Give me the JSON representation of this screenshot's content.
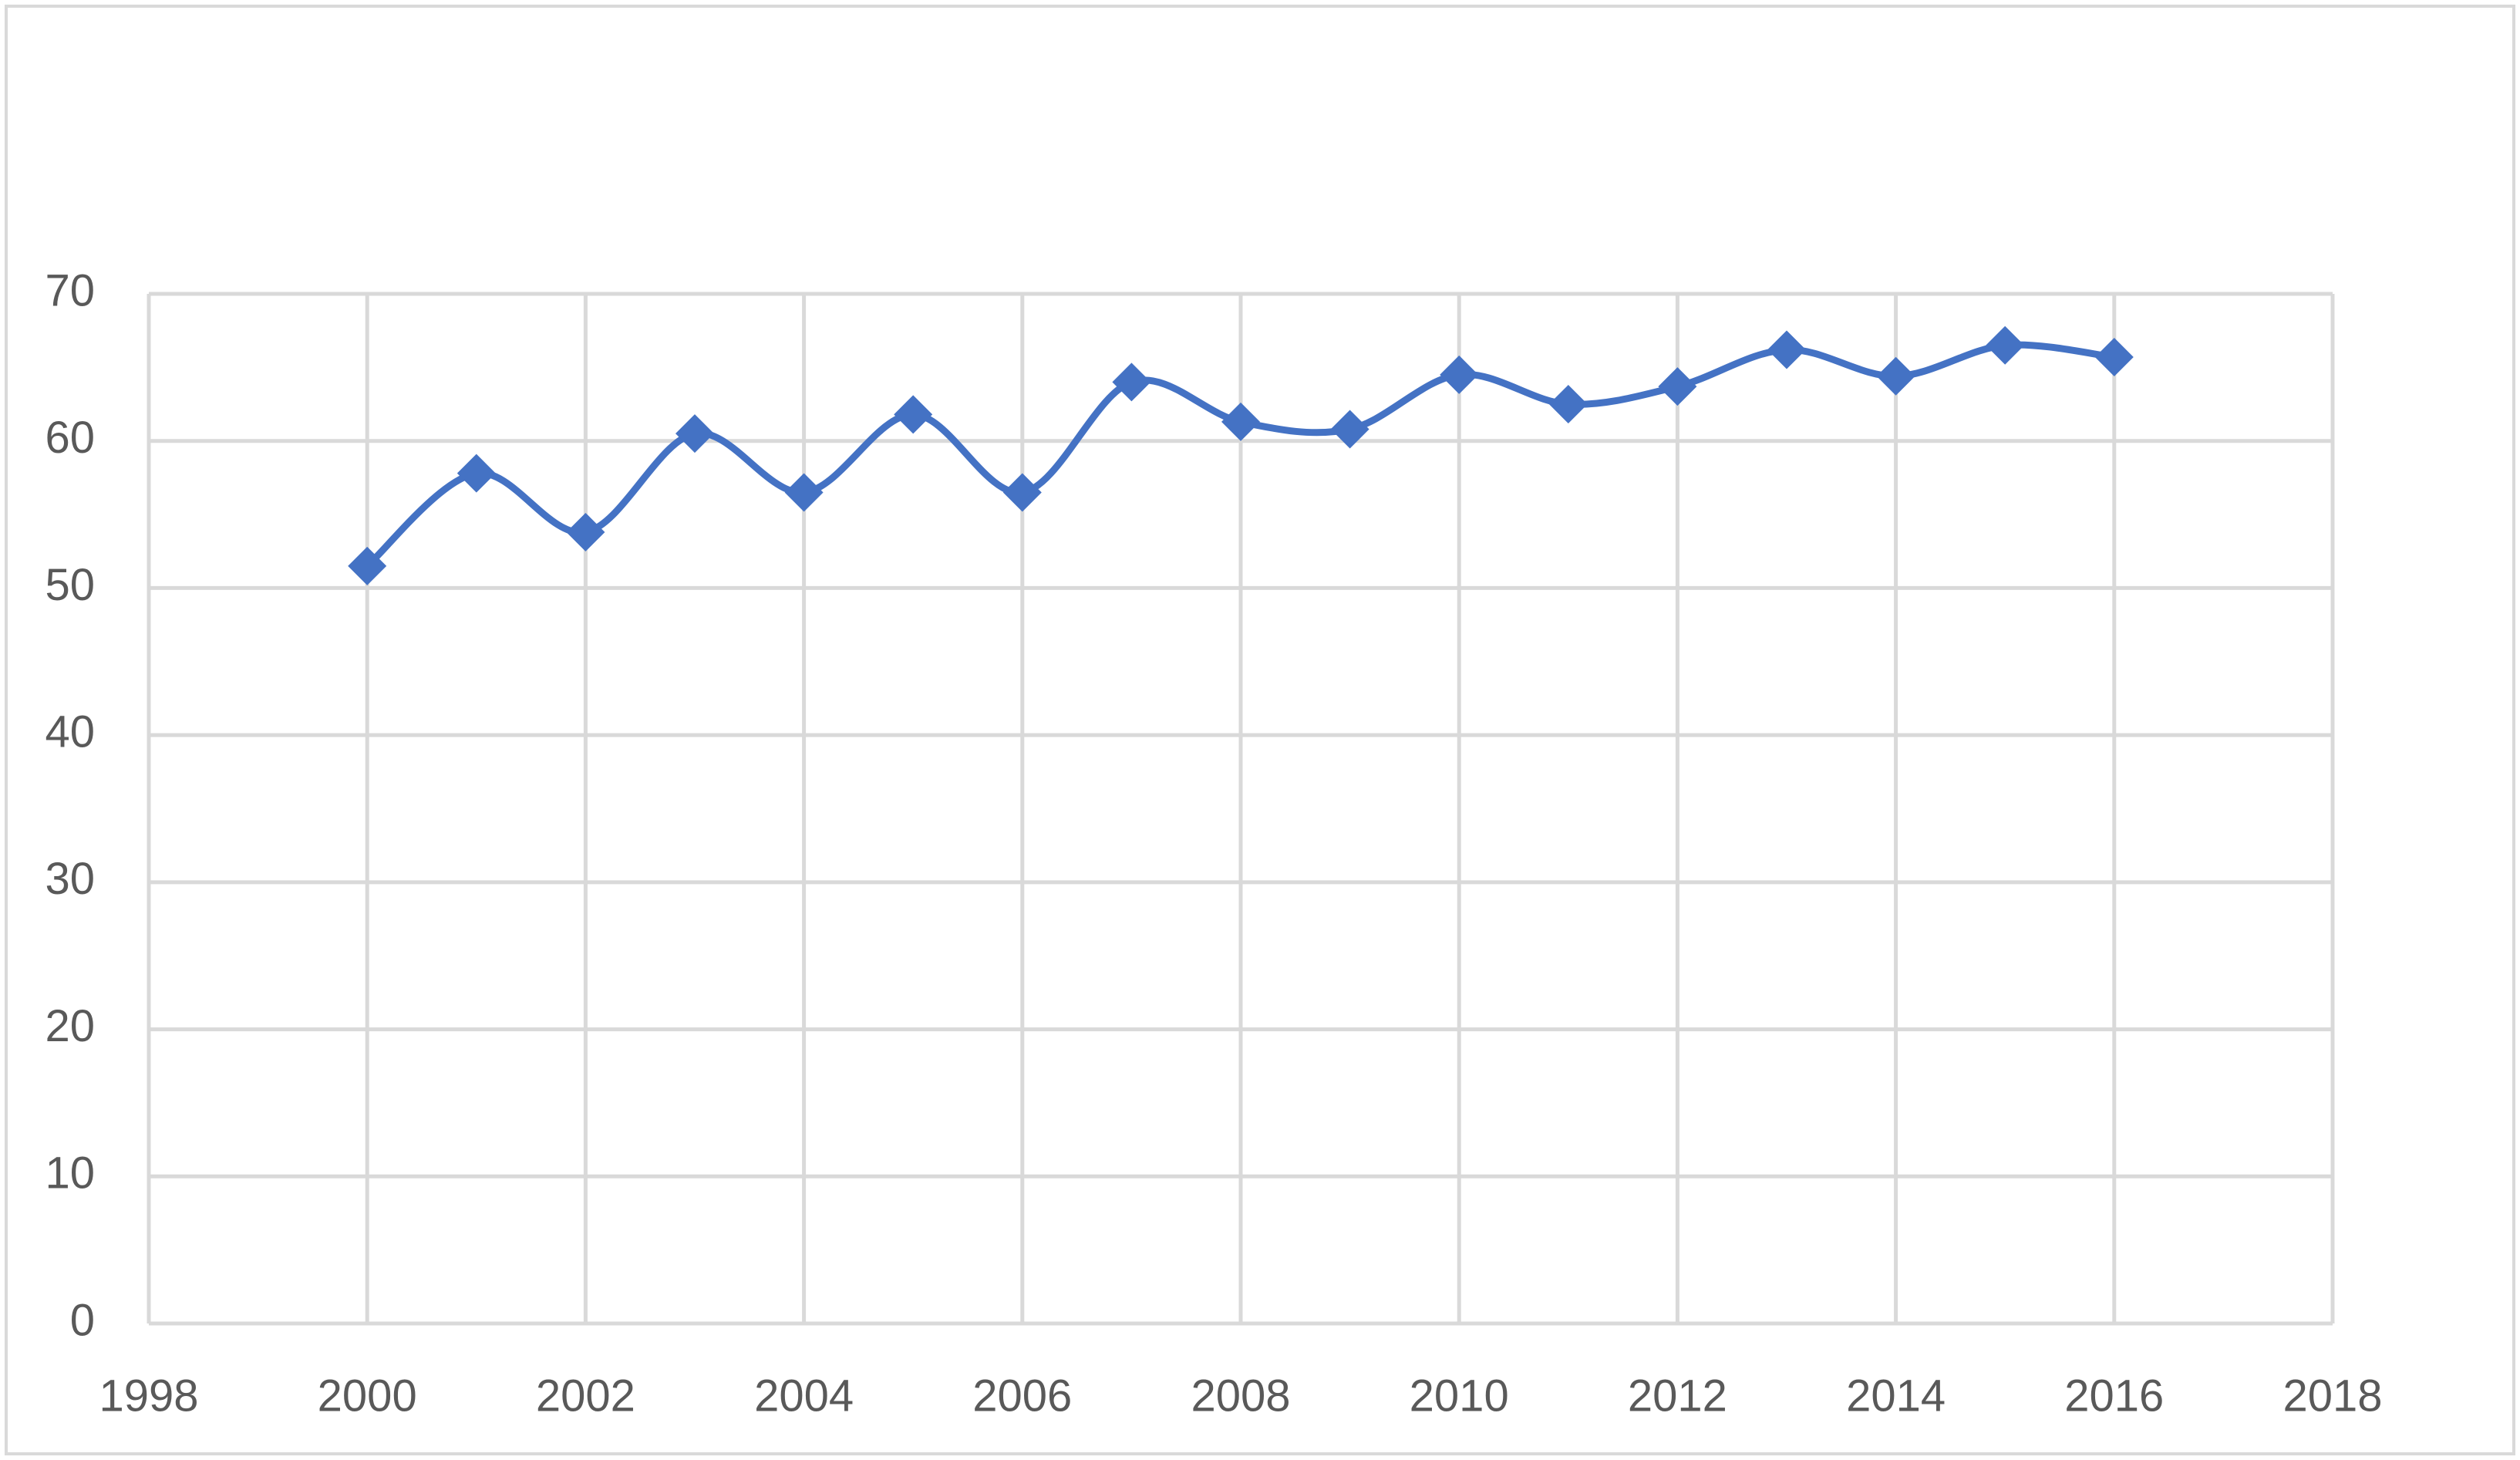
{
  "chart_data": {
    "type": "line",
    "x": [
      2000,
      2001,
      2002,
      2003,
      2004,
      2005,
      2006,
      2007,
      2008,
      2009,
      2010,
      2011,
      2012,
      2013,
      2014,
      2015,
      2016
    ],
    "series": [
      {
        "color": "#4472c4",
        "marker": "diamond",
        "smooth": true,
        "values": [
          51.5,
          57.8,
          53.8,
          60.5,
          56.5,
          61.8,
          56.5,
          64,
          61.3,
          60.8,
          64.5,
          62.5,
          63.7,
          66.2,
          64.4,
          66.5,
          65.7
        ]
      }
    ],
    "xlim": [
      1998,
      2018
    ],
    "xticks": [
      1998,
      2000,
      2002,
      2004,
      2006,
      2008,
      2010,
      2012,
      2014,
      2016,
      2018
    ],
    "ylim": [
      0,
      70
    ],
    "yticks": [
      0,
      10,
      20,
      30,
      40,
      50,
      60,
      70
    ],
    "grid": true
  }
}
